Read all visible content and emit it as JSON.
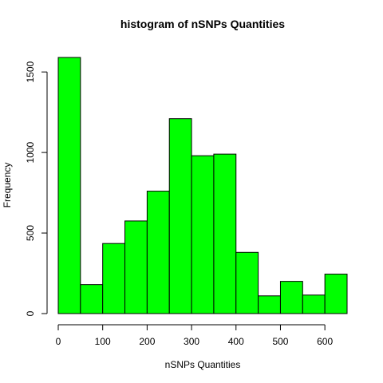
{
  "chart_data": {
    "type": "bar",
    "title": "histogram of nSNPs Quantities",
    "xlabel": "nSNPs Quantities",
    "ylabel": "Frequency",
    "bin_edges": [
      0,
      50,
      100,
      150,
      200,
      250,
      300,
      350,
      400,
      450,
      500,
      550,
      600,
      650
    ],
    "values": [
      1590,
      180,
      435,
      575,
      760,
      1210,
      980,
      990,
      380,
      110,
      200,
      115,
      245
    ],
    "xticks": [
      "0",
      "100",
      "200",
      "300",
      "400",
      "500",
      "600"
    ],
    "xtick_values": [
      0,
      100,
      200,
      300,
      400,
      500,
      600
    ],
    "yticks": [
      "0",
      "500",
      "1000",
      "1500"
    ],
    "ytick_values": [
      0,
      500,
      1000,
      1500
    ],
    "xlim": [
      0,
      650
    ],
    "ylim": [
      0,
      1590
    ],
    "bar_color": "#00ff00",
    "grid": false,
    "legend": "none"
  }
}
